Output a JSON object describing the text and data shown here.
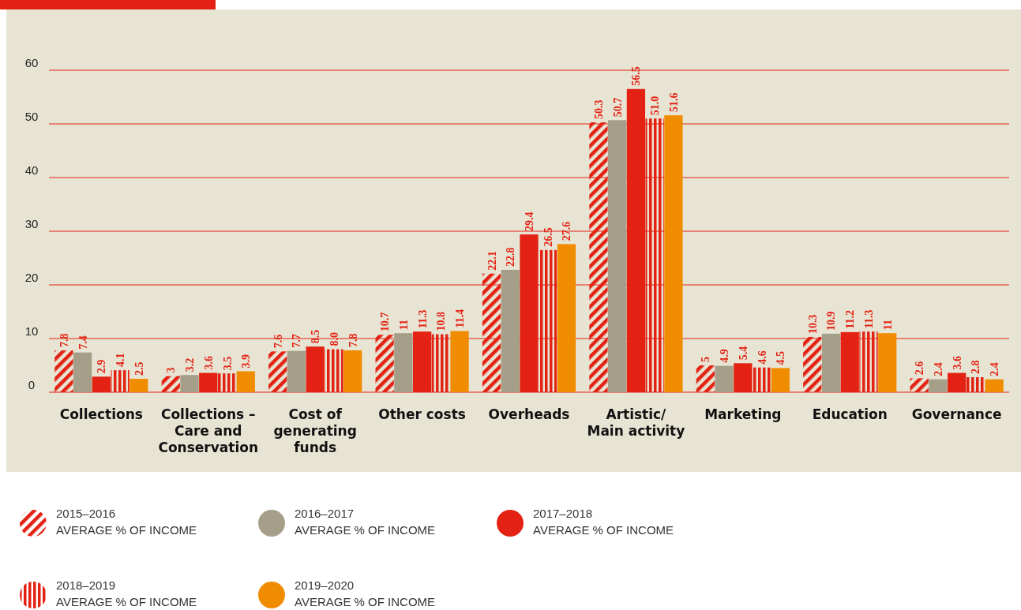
{
  "chart_data": {
    "type": "bar",
    "categories": [
      "Collections",
      "Collections – Care and Conservation",
      "Cost of generating funds",
      "Other costs",
      "Overheads",
      "Artistic/ Main activity",
      "Marketing",
      "Education",
      "Governance"
    ],
    "series": [
      {
        "name": "2015–2016 AVERAGE % OF INCOME",
        "color": "#e32213",
        "values": [
          7.8,
          3,
          7.6,
          10.7,
          22.1,
          50.3,
          5,
          10.3,
          2.6
        ],
        "value_labels": [
          "7.8",
          "3",
          "7.6",
          "10.7",
          "22.1",
          "50.3",
          "5",
          "10.3",
          "2.6"
        ]
      },
      {
        "name": "2016–2017 AVERAGE % OF INCOME",
        "color": "#a59f8a",
        "values": [
          7.4,
          3.2,
          7.7,
          11,
          22.8,
          50.7,
          4.9,
          10.9,
          2.4
        ],
        "value_labels": [
          "7.4",
          "3.2",
          "7.7",
          "11",
          "22.8",
          "50.7",
          "4.9",
          "10.9",
          "2.4"
        ]
      },
      {
        "name": "2017–2018 AVERAGE % OF INCOME",
        "color": "#e32213",
        "values": [
          2.9,
          3.6,
          8.5,
          11.3,
          29.4,
          56.5,
          5.4,
          11.2,
          3.6
        ],
        "value_labels": [
          "2.9",
          "3.6",
          "8.5",
          "11.3",
          "29.4",
          "56.5",
          "5.4",
          "11.2",
          "3.6"
        ]
      },
      {
        "name": "2018–2019 AVERAGE % OF INCOME",
        "color": "#e32213",
        "values": [
          4.1,
          3.5,
          8.0,
          10.8,
          26.5,
          51.0,
          4.6,
          11.3,
          2.8
        ],
        "value_labels": [
          "4.1",
          "3.5",
          "8.0",
          "10.8",
          "26.5",
          "51.0",
          "4.6",
          "11.3",
          "2.8"
        ]
      },
      {
        "name": "2019–2020 AVERAGE % OF INCOME",
        "color": "#f08c00",
        "values": [
          2.5,
          3.9,
          7.8,
          11.4,
          27.6,
          51.6,
          4.5,
          11,
          2.4
        ],
        "value_labels": [
          "2.5",
          "3.9",
          "7.8",
          "11.4",
          "27.6",
          "51.6",
          "4.5",
          "11",
          "2.4"
        ]
      }
    ],
    "ylim": [
      0,
      60
    ],
    "yticks": [
      0,
      10,
      20,
      30,
      40,
      50,
      60
    ],
    "grid": "y",
    "legend": "bottom"
  }
}
